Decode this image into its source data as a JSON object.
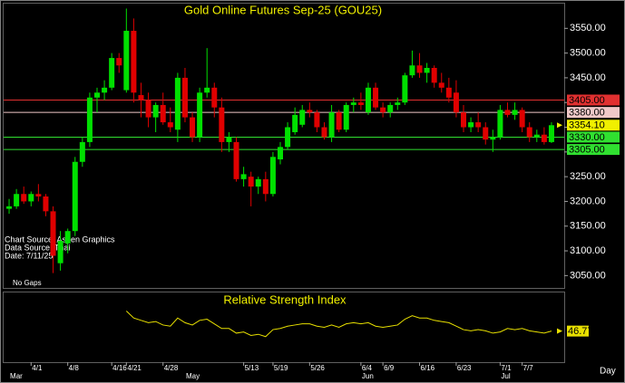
{
  "chart_data": {
    "type": "candlestick",
    "title": "Gold Online Futures Sep-25 (GOU25)",
    "annotations": [
      "Chart Source: Aspen Graphics",
      "Data Source: Thai",
      "Date:   7/11/25",
      "No Gaps"
    ],
    "x_unit_label": "Day",
    "categories": [
      null,
      null,
      null,
      "4/1",
      null,
      null,
      null,
      null,
      "4/8",
      null,
      null,
      null,
      null,
      null,
      "4/16",
      null,
      "4/21",
      null,
      null,
      null,
      null,
      "4/28",
      null,
      null,
      null,
      null,
      null,
      null,
      null,
      null,
      null,
      null,
      "5/13",
      null,
      null,
      null,
      "5/19",
      null,
      null,
      null,
      null,
      "5/26",
      null,
      null,
      null,
      null,
      null,
      null,
      "6/4",
      null,
      null,
      "6/9",
      null,
      null,
      null,
      null,
      "6/16",
      null,
      null,
      null,
      null,
      "6/23",
      null,
      null,
      null,
      null,
      null,
      "7/1",
      null,
      null,
      "7/7",
      null,
      null,
      null,
      null
    ],
    "month_categories": [
      "Mar",
      null,
      null,
      null,
      null,
      null,
      null,
      null,
      null,
      null,
      null,
      null,
      null,
      null,
      null,
      null,
      null,
      null,
      null,
      null,
      null,
      null,
      null,
      null,
      "May",
      null,
      null,
      null,
      null,
      null,
      null,
      null,
      null,
      null,
      null,
      null,
      null,
      null,
      null,
      null,
      null,
      null,
      null,
      null,
      null,
      null,
      null,
      null,
      "Jun",
      null,
      null,
      null,
      null,
      null,
      null,
      null,
      null,
      null,
      null,
      null,
      null,
      null,
      null,
      null,
      null,
      null,
      null,
      "Jul",
      null,
      null,
      null,
      null,
      null,
      null,
      null
    ],
    "open": [
      3185,
      3190,
      3215,
      3200,
      3215,
      3210,
      3180,
      3075,
      3115,
      3140,
      3280,
      3320,
      3410,
      3420,
      3430,
      3490,
      3425,
      3545,
      3415,
      3405,
      3370,
      3395,
      3360,
      3345,
      3450,
      3370,
      3330,
      3420,
      3430,
      3390,
      3320,
      3320,
      3245,
      3250,
      3230,
      3245,
      3215,
      3285,
      3310,
      3340,
      3355,
      3385,
      3380,
      3350,
      3330,
      3380,
      3345,
      3395,
      3400,
      3380,
      3430,
      3390,
      3380,
      3395,
      3400,
      3455,
      3475,
      3460,
      3470,
      3440,
      3430,
      3420,
      3380,
      3350,
      3360,
      3350,
      3325,
      3330,
      3385,
      3375,
      3385,
      3350,
      3330,
      3335,
      3320
    ],
    "high": [
      3205,
      3225,
      3230,
      3220,
      3235,
      3215,
      3190,
      3140,
      3145,
      3290,
      3330,
      3420,
      3430,
      3445,
      3500,
      3500,
      3590,
      3570,
      3440,
      3420,
      3400,
      3420,
      3390,
      3460,
      3470,
      3380,
      3430,
      3510,
      3440,
      3410,
      3340,
      3330,
      3270,
      3260,
      3250,
      3260,
      3300,
      3320,
      3360,
      3390,
      3395,
      3400,
      3385,
      3360,
      3395,
      3385,
      3400,
      3410,
      3420,
      3440,
      3440,
      3400,
      3400,
      3410,
      3460,
      3505,
      3500,
      3480,
      3475,
      3460,
      3450,
      3445,
      3395,
      3370,
      3380,
      3360,
      3345,
      3395,
      3400,
      3400,
      3390,
      3360,
      3345,
      3350,
      3360
    ],
    "low": [
      3175,
      3185,
      3195,
      3190,
      3200,
      3170,
      3055,
      3060,
      3095,
      3130,
      3270,
      3310,
      3380,
      3405,
      3425,
      3460,
      3420,
      3400,
      3370,
      3350,
      3340,
      3355,
      3340,
      3320,
      3360,
      3320,
      3320,
      3410,
      3370,
      3300,
      3300,
      3240,
      3230,
      3190,
      3215,
      3200,
      3210,
      3275,
      3305,
      3335,
      3350,
      3370,
      3340,
      3325,
      3320,
      3340,
      3340,
      3380,
      3385,
      3375,
      3385,
      3370,
      3370,
      3385,
      3395,
      3450,
      3450,
      3440,
      3430,
      3420,
      3400,
      3370,
      3340,
      3340,
      3340,
      3315,
      3300,
      3325,
      3370,
      3365,
      3340,
      3320,
      3320,
      3315,
      3318
    ],
    "close": [
      3190,
      3215,
      3200,
      3215,
      3210,
      3180,
      3090,
      3120,
      3140,
      3280,
      3320,
      3410,
      3420,
      3430,
      3490,
      3475,
      3545,
      3420,
      3405,
      3370,
      3395,
      3360,
      3350,
      3450,
      3370,
      3330,
      3420,
      3430,
      3390,
      3320,
      3330,
      3245,
      3255,
      3230,
      3245,
      3215,
      3290,
      3310,
      3350,
      3375,
      3385,
      3380,
      3350,
      3330,
      3380,
      3345,
      3395,
      3400,
      3395,
      3430,
      3390,
      3380,
      3395,
      3400,
      3455,
      3475,
      3460,
      3470,
      3440,
      3430,
      3410,
      3380,
      3350,
      3360,
      3350,
      3325,
      3330,
      3385,
      3375,
      3385,
      3350,
      3330,
      3335,
      3320,
      3354.1
    ],
    "up_color": "#00e000",
    "down_color": "#e00000",
    "ylim": [
      3025,
      3600
    ],
    "yticks": [
      {
        "value": 3050,
        "label": "3050.00"
      },
      {
        "value": 3100,
        "label": "3100.00"
      },
      {
        "value": 3150,
        "label": "3150.00"
      },
      {
        "value": 3200,
        "label": "3200.00"
      },
      {
        "value": 3250,
        "label": "3250.00"
      },
      {
        "value": 3300,
        "label": "3300.00"
      },
      {
        "value": 3350,
        "label": "3350.00"
      },
      {
        "value": 3400,
        "label": "3400.00"
      },
      {
        "value": 3450,
        "label": "3450.00"
      },
      {
        "value": 3500,
        "label": "3500.00"
      },
      {
        "value": 3550,
        "label": "3550.00"
      }
    ],
    "levels": [
      {
        "value": 3405,
        "label": "3405.00",
        "color": "#e03030"
      },
      {
        "value": 3380,
        "label": "3380.00",
        "color": "#f0c8c8"
      },
      {
        "value": 3330,
        "label": "3330.00",
        "color": "#30e030"
      },
      {
        "value": 3305,
        "label": "3305.00",
        "color": "#30e030"
      }
    ],
    "last_price": {
      "value": 3354.1,
      "label": "3354.10",
      "color": "#f0f000"
    },
    "indicator": {
      "type": "line",
      "title": "Relative Strength Index",
      "color": "#e8e000",
      "ylim": [
        20,
        80
      ],
      "values": [
        null,
        null,
        null,
        null,
        null,
        null,
        null,
        null,
        null,
        null,
        null,
        null,
        null,
        null,
        null,
        null,
        64,
        58,
        56,
        54,
        55,
        52,
        51,
        58,
        54,
        52,
        56,
        57,
        53,
        49,
        49,
        45,
        46,
        43,
        44,
        42,
        48,
        49,
        51,
        52,
        53,
        53,
        51,
        50,
        52,
        50,
        53,
        54,
        53,
        54,
        51,
        50,
        51,
        52,
        57,
        60,
        58,
        58,
        56,
        55,
        54,
        51,
        48,
        47,
        48,
        47,
        45,
        46,
        49,
        48,
        49,
        47,
        46,
        45,
        46.77
      ]
    }
  }
}
